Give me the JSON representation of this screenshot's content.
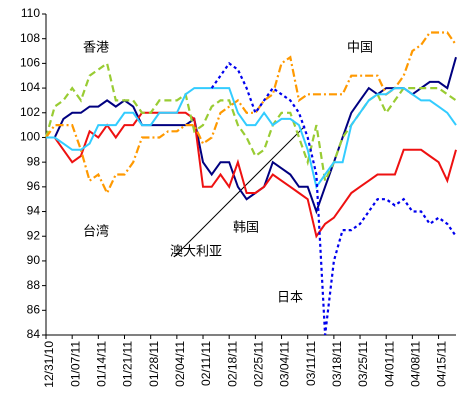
{
  "chart_data": {
    "type": "line",
    "categories": [
      "12/31/10",
      null,
      null,
      "01/07/11",
      null,
      null,
      "01/14/11",
      null,
      null,
      "01/21/11",
      null,
      null,
      "01/28/11",
      null,
      null,
      "02/04/11",
      null,
      null,
      "02/11/11",
      null,
      null,
      "02/18/11",
      null,
      null,
      "02/25/11",
      null,
      null,
      "03/04/11",
      null,
      null,
      "03/11/11",
      null,
      null,
      "03/18/11",
      null,
      null,
      "03/25/11",
      null,
      null,
      "04/01/11",
      null,
      null,
      "04/08/11",
      null,
      null,
      "04/15/11",
      null,
      null
    ],
    "ylim": [
      84,
      110
    ],
    "yticks": [
      84,
      86,
      88,
      90,
      92,
      94,
      96,
      98,
      100,
      102,
      104,
      106,
      108,
      110
    ],
    "grid": false,
    "series": [
      {
        "name": "韩国",
        "color": "#000080",
        "style": "solid",
        "values": [
          100,
          100,
          101.5,
          102,
          102,
          102.5,
          102.5,
          103,
          102.5,
          103,
          102.5,
          101,
          101,
          101,
          101,
          101,
          101,
          101.5,
          98,
          97,
          98,
          98,
          96,
          95,
          95.5,
          96,
          98,
          97.5,
          97,
          96,
          96,
          94,
          96,
          98,
          100,
          102,
          103,
          104,
          103.5,
          104,
          104,
          104,
          103.5,
          104,
          104.5,
          104.5,
          104,
          106.5
        ]
      },
      {
        "name": "台湾",
        "color": "#ee1111",
        "style": "solid",
        "values": [
          100,
          100,
          99,
          98,
          98.5,
          100.5,
          100,
          101,
          100,
          101,
          101,
          102,
          102,
          102,
          102,
          102,
          102,
          101.5,
          96,
          96,
          97,
          96,
          98,
          95.5,
          95.5,
          96,
          97,
          96.5,
          96,
          95.5,
          95,
          92,
          93,
          93.5,
          94.5,
          95.5,
          96,
          96.5,
          97,
          97,
          97,
          99,
          99,
          99,
          98.5,
          98,
          96.5,
          99
        ]
      },
      {
        "name": "香港",
        "color": "#99cc33",
        "style": "dashed",
        "values": [
          100,
          102.5,
          103,
          104,
          103,
          105,
          105.5,
          106,
          103,
          103,
          103,
          102,
          102,
          103,
          103,
          103,
          103.5,
          100.5,
          101,
          102.5,
          103,
          103,
          101,
          100,
          98.5,
          99,
          101,
          102,
          102,
          100,
          98,
          101,
          96.5,
          98,
          100,
          101,
          102,
          103,
          103.5,
          102,
          103,
          104,
          104,
          104,
          104,
          104,
          103.5,
          103
        ]
      },
      {
        "name": "中国",
        "color": "#ff9900",
        "style": "dashdot",
        "values": [
          100,
          101,
          101,
          101,
          99,
          96.5,
          97,
          95.5,
          97,
          97,
          98,
          100,
          100,
          100,
          100.5,
          100.5,
          101,
          101,
          99.5,
          100,
          102,
          102.5,
          103,
          102,
          102,
          103,
          103.5,
          106,
          106.5,
          103,
          103.5,
          103.5,
          103.5,
          103.5,
          103.5,
          105,
          105,
          105,
          105,
          103.5,
          104,
          105,
          107,
          107.5,
          108.5,
          108.5,
          108.5,
          107.5
        ]
      },
      {
        "name": "澳大利亚",
        "color": "#33ccff",
        "style": "solid",
        "values": [
          100,
          100,
          99.5,
          99,
          99,
          99.5,
          101,
          101,
          101,
          102,
          102,
          101,
          101,
          102,
          102,
          102,
          103.5,
          104,
          104,
          104,
          104,
          104,
          102,
          101,
          101,
          102,
          101,
          101.5,
          101.5,
          101,
          99,
          96,
          97,
          98,
          98,
          101,
          102,
          103,
          103.5,
          103.5,
          104,
          104,
          103.5,
          103,
          103,
          102.5,
          102,
          101
        ]
      },
      {
        "name": "日本",
        "color": "#0000ee",
        "style": "dotted",
        "values": [
          null,
          null,
          null,
          null,
          null,
          null,
          null,
          null,
          null,
          null,
          null,
          null,
          null,
          null,
          null,
          null,
          null,
          null,
          null,
          104,
          105,
          106,
          105.5,
          104,
          102,
          103,
          104,
          103.5,
          103,
          102,
          100,
          97,
          84,
          90,
          92.5,
          92.5,
          93,
          94,
          95,
          95,
          94.5,
          95,
          94,
          94,
          93,
          93.5,
          93,
          92
        ]
      }
    ]
  }
}
